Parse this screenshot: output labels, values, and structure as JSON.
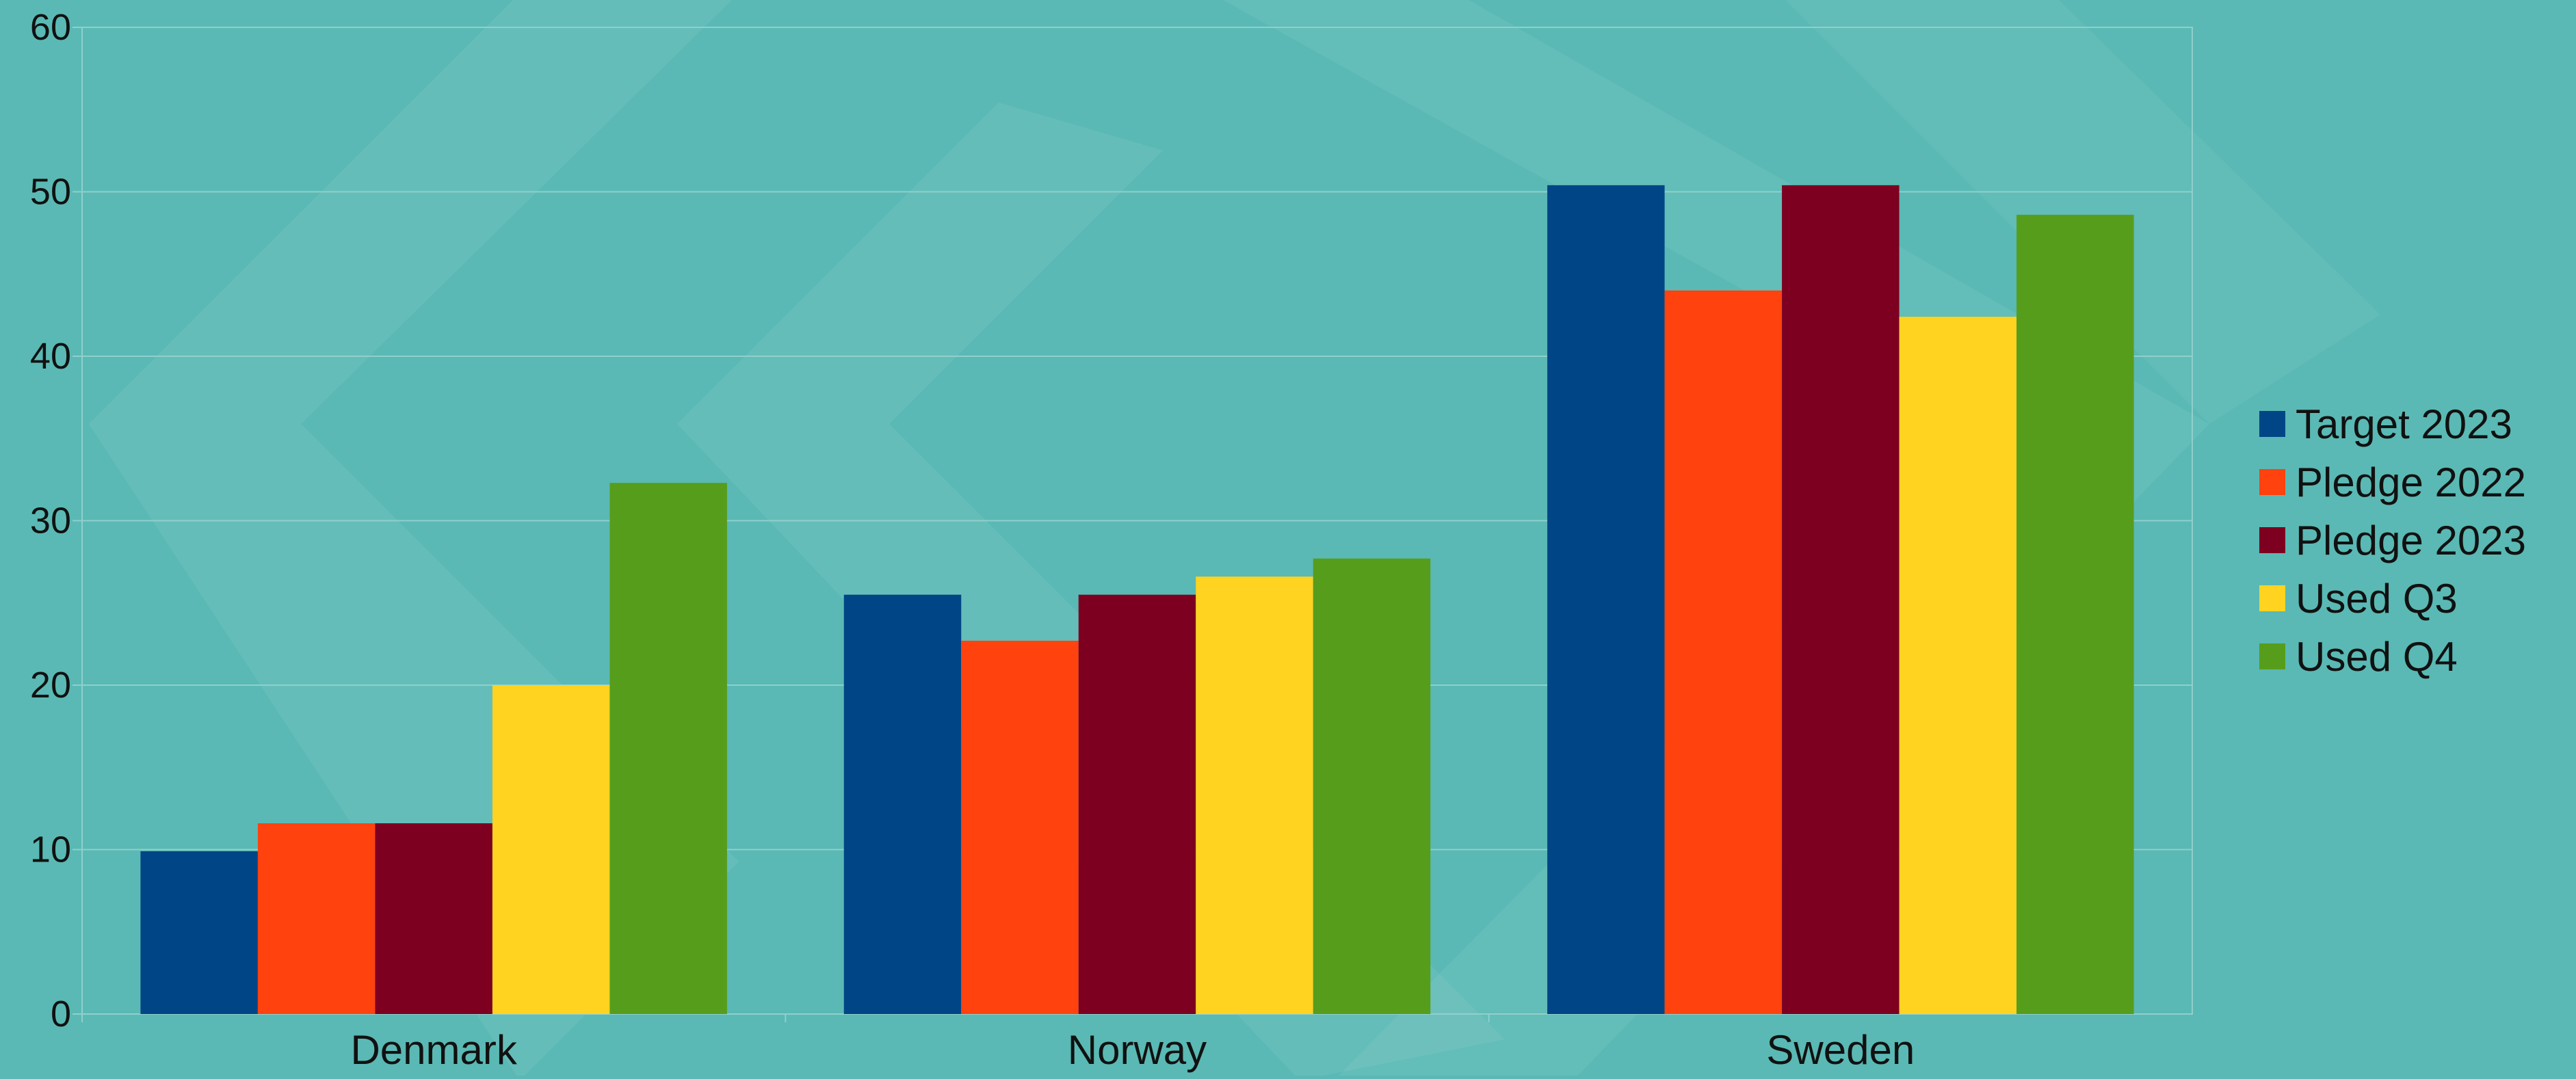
{
  "chart_data": {
    "type": "bar",
    "categories": [
      "Denmark",
      "Norway",
      "Sweden"
    ],
    "series": [
      {
        "name": "Target 2023",
        "color": "#004586",
        "values": [
          9.9,
          25.5,
          50.4
        ]
      },
      {
        "name": "Pledge 2022",
        "color": "#ff420e",
        "values": [
          11.6,
          22.7,
          44.0
        ]
      },
      {
        "name": "Pledge 2023",
        "color": "#7e0021",
        "values": [
          11.6,
          25.5,
          50.4
        ]
      },
      {
        "name": "Used Q3",
        "color": "#ffd320",
        "values": [
          20.0,
          26.6,
          42.4
        ]
      },
      {
        "name": "Used Q4",
        "color": "#579d1c",
        "values": [
          32.3,
          27.7,
          48.6
        ]
      }
    ],
    "yticks": [
      "0",
      "10",
      "20",
      "30",
      "40",
      "50",
      "60"
    ],
    "ylim": [
      0,
      60
    ],
    "grid": true,
    "legend_position": "right",
    "background_color": "#5ab9b4"
  }
}
